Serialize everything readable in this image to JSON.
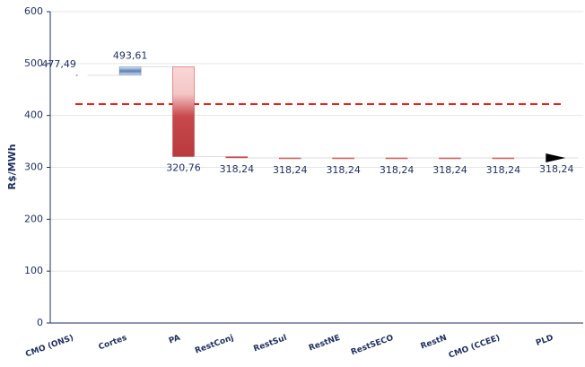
{
  "chart_data": {
    "type": "waterfall",
    "categories": [
      "CMO (ONS)",
      "Cortes",
      "PA",
      "RestConj",
      "RestSul",
      "RestNE",
      "RestSECO",
      "RestN",
      "CMO (CCEE)",
      "PLD"
    ],
    "values": [
      477.49,
      493.61,
      320.76,
      318.24,
      318.24,
      318.24,
      318.24,
      318.24,
      318.24,
      318.24
    ],
    "value_labels": [
      "477,49",
      "493,61",
      "320,76",
      "318,24",
      "318,24",
      "318,24",
      "318,24",
      "318,24",
      "318,24",
      "318,24"
    ],
    "increase_color": "#5a7fb5",
    "decrease_color": "#c0393b",
    "ylabel": "R$/MWh",
    "ylim": [
      0,
      600
    ],
    "yticks": [
      0,
      100,
      200,
      300,
      400,
      500,
      600
    ],
    "grid": true,
    "reference_line": {
      "value": 422,
      "color": "#e8201e"
    }
  }
}
